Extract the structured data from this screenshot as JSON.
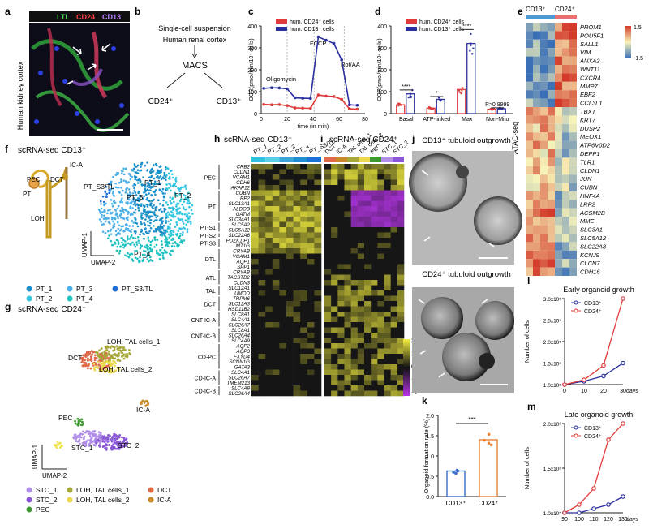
{
  "panel_letters": [
    "a",
    "b",
    "c",
    "d",
    "e",
    "f",
    "g",
    "h",
    "i",
    "j",
    "k",
    "l",
    "m"
  ],
  "panel_a": {
    "stains": [
      "LTL",
      "CD24",
      "CD13"
    ],
    "side_label": "Human kidney cortex"
  },
  "panel_b": {
    "lines": [
      "Single-cell suspension",
      "Human renal cortex"
    ],
    "method": "MACS",
    "outputs": [
      "CD24⁺",
      "CD13⁺"
    ]
  },
  "panel_f": {
    "title": "scRNA-seq CD13⁺",
    "anatomy": [
      "PEC",
      "DCT",
      "IC-A",
      "PT",
      "LOH"
    ],
    "clusters": [
      "PT_1",
      "PT_2",
      "PT_3",
      "PT_4",
      "PT_S3/TL"
    ],
    "axis": [
      "UMAP-1",
      "UMAP-2"
    ]
  },
  "panel_g": {
    "title": "scRNA-seq CD24⁺",
    "labels": [
      "LOH, TAL cells_1",
      "DCT",
      "LOH, TAL cells_2",
      "IC-A",
      "PEC",
      "STC_1",
      "STC_2"
    ],
    "legend": [
      "STC_1",
      "LOH, TAL cells_1",
      "DCT",
      "STC_2",
      "LOH, TAL cells_2",
      "IC-A",
      "PEC"
    ],
    "axis": [
      "UMAP-1",
      "UMAP-2"
    ]
  },
  "panel_h": {
    "title": "scRNA-seq CD13⁺",
    "cols": [
      "PT_1",
      "PT_2",
      "PT_3",
      "PT_4",
      "PT_S3/TL"
    ]
  },
  "panel_i": {
    "title": "scRNA-seq CD24⁺",
    "cols": [
      "DCT",
      "IC-A",
      "TAL cells_1",
      "TAL cells_2",
      "PEC",
      "STC_1",
      "STC_2"
    ]
  },
  "heatmap_groups": [
    "PEC",
    "PT",
    "PT-S1",
    "PT-S2",
    "PT-S3",
    "DTL",
    "ATL",
    "TAL",
    "DCT",
    "CNT-IC-A",
    "CNT-IC-B",
    "CD-PC",
    "CD-IC-A",
    "CD-IC-B"
  ],
  "heatmap_genes": [
    "CRB2",
    "CLDN1",
    "VCAM1",
    "CDH6",
    "AKAP12",
    "CUBN",
    "LRP2",
    "SLC13A1",
    "ALDOB",
    "GATM",
    "SLC34A1",
    "SLC5A2",
    "SLC5A12",
    "SLC22A6",
    "PDZK1IP1",
    "MT1G",
    "CRYAB",
    "VCAM1",
    "AQP1",
    "SPP1",
    "CRYAB",
    "TACSTD2",
    "CLDN3",
    "SLC12A1",
    "UMOD",
    "TRPM6",
    "SLC12A3",
    "HSD11B2",
    "SLC8A1",
    "SLC4A1",
    "SLC26A7",
    "SLC8A1",
    "SLC26A4",
    "SLC4A9",
    "AQP2",
    "AQP3",
    "FXYD4",
    "SCNN1G",
    "GATA3",
    "SLC4A1",
    "SLC26A7",
    "TMEM213",
    "SLC4A9",
    "SLC26A4"
  ],
  "heatmap_scale": {
    "ticks": [
      "2",
      "1",
      "0",
      "−1",
      "−2"
    ]
  },
  "panel_e": {
    "col_groups": [
      "CD13⁺",
      "CD24⁺"
    ],
    "side_label": "ATAC-seq",
    "scale_ticks": [
      "1.5",
      "-1.5"
    ],
    "genes": [
      "PROM1",
      "POU5F1",
      "SALL1",
      "VIM",
      "ANXA2",
      "WNT11",
      "CXCR4",
      "MMP7",
      "EBF2",
      "CCL3L1",
      "TBXT",
      "KRT7",
      "DUSP2",
      "MEOX1",
      "ATP6V0D2",
      "DEPP1",
      "TLR1",
      "CLDN1",
      "JUN",
      "CUBN",
      "HNF4A",
      "LRP2",
      "ACSM2B",
      "MME",
      "SLC3A1",
      "SLC5A12",
      "SLC22A8",
      "KCNJ9",
      "CLCN7",
      "CDH16"
    ]
  },
  "panel_j": {
    "titles": [
      "CD13⁺ tubuloid outgrowth",
      "CD24⁺ tubuloid outgrowth"
    ]
  },
  "chart_data": [
    {
      "type": "line",
      "panel": "c",
      "title": "",
      "xlabel": "time (in min)",
      "ylabel": "OCR(pmol/min/10⁴ cells)",
      "xlim": [
        0,
        80
      ],
      "ylim": [
        0,
        400
      ],
      "xticks": [
        0,
        20,
        40,
        60,
        80
      ],
      "yticks": [
        0,
        100,
        200,
        300,
        400
      ],
      "annotations": [
        "Oligomycin",
        "FCCP",
        "Rot/AA"
      ],
      "series": [
        {
          "name": "hum. CD24⁺ cells",
          "color": "#e03a3a",
          "x": [
            2,
            8,
            14,
            20,
            26,
            32,
            38,
            44,
            50,
            56,
            62,
            68,
            74
          ],
          "y": [
            42,
            40,
            41,
            36,
            26,
            25,
            24,
            85,
            80,
            78,
            65,
            22,
            20
          ]
        },
        {
          "name": "hum. CD13⁺ cells",
          "color": "#2a2f9e",
          "x": [
            2,
            8,
            14,
            20,
            26,
            32,
            38,
            44,
            50,
            56,
            62,
            68,
            74
          ],
          "y": [
            115,
            118,
            117,
            113,
            72,
            70,
            69,
            350,
            335,
            320,
            245,
            40,
            38
          ]
        }
      ]
    },
    {
      "type": "bar",
      "panel": "d",
      "ylabel": "OCR(pmol/min/10⁴ cells)",
      "ylim": [
        0,
        400
      ],
      "yticks": [
        0,
        100,
        200,
        300,
        400
      ],
      "categories": [
        "Basal",
        "ATP-linked",
        "Max",
        "Non-Mito"
      ],
      "significance": [
        "****",
        "*",
        "****",
        "P>0.9999"
      ],
      "series": [
        {
          "name": "hum. CD24⁺ cells",
          "color": "#e03a3a",
          "values": [
            40,
            25,
            110,
            20
          ]
        },
        {
          "name": "hum. CD13⁺ cells",
          "color": "#2a2f9e",
          "values": [
            90,
            65,
            320,
            22
          ]
        }
      ]
    },
    {
      "type": "bar",
      "panel": "k",
      "ylabel": "Organoid formation rate (%)",
      "ylim": [
        0,
        2.0
      ],
      "yticks": [
        0,
        0.5,
        1.0,
        1.5,
        2.0
      ],
      "categories": [
        "CD13⁺",
        "CD24⁺"
      ],
      "values": [
        0.63,
        1.4
      ],
      "colors": [
        "#3c6bc9",
        "#e8833a"
      ],
      "significance": "***"
    },
    {
      "type": "line",
      "panel": "l",
      "title": "Early organoid growth",
      "xlabel": "days",
      "ylabel": "Number of cells",
      "xlim": [
        0,
        30
      ],
      "xticks": [
        0,
        10,
        20,
        30
      ],
      "yticks": [
        "1.0x10⁵",
        "1.5x10⁵",
        "2.0x10⁵",
        "2.5x10⁵",
        "3.0x10⁵"
      ],
      "series": [
        {
          "name": "CD13⁺",
          "color": "#2a2f9e",
          "x": [
            0,
            10,
            20,
            30
          ],
          "y": [
            1.0,
            1.07,
            1.18,
            1.45
          ]
        },
        {
          "name": "CD24⁺",
          "color": "#e03a3a",
          "x": [
            0,
            10,
            20,
            30
          ],
          "y": [
            1.0,
            1.1,
            1.4,
            2.8
          ]
        }
      ]
    },
    {
      "type": "line",
      "panel": "m",
      "title": "Late organoid growth",
      "xlabel": "days",
      "ylabel": "Number of cells",
      "xlim": [
        90,
        130
      ],
      "xticks": [
        90,
        100,
        110,
        120,
        130
      ],
      "yticks": [
        "1.0x10⁵",
        "1.5x10⁶",
        "2.0x10⁶"
      ],
      "series": [
        {
          "name": "CD13⁺",
          "color": "#2a2f9e",
          "x": [
            90,
            100,
            110,
            120,
            130
          ],
          "y": [
            1.0,
            1.0,
            1.05,
            1.1,
            1.2
          ]
        },
        {
          "name": "CD24⁺",
          "color": "#e03a3a",
          "x": [
            90,
            100,
            110,
            120,
            130
          ],
          "y": [
            1.0,
            1.1,
            1.3,
            1.9,
            2.1
          ]
        }
      ]
    }
  ]
}
